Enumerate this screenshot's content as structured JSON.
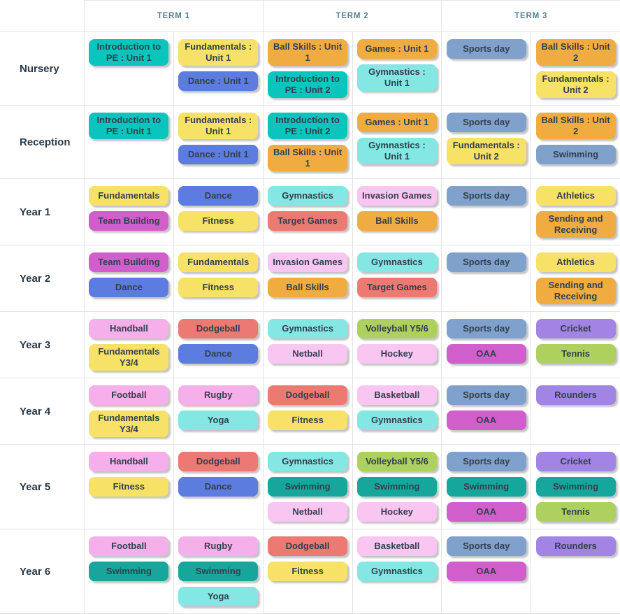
{
  "palette": {
    "teal": "#0ac5be",
    "yellow": "#f8e167",
    "blue": "#5c7ce0",
    "orange": "#f0ac40",
    "cyan": "#85e7e3",
    "bluegray": "#80a1cb",
    "magenta": "#d05ecb",
    "pink": "#f5afea",
    "lightpink": "#f8c6f1",
    "red": "#ec7a72",
    "lime": "#aed05e",
    "purple": "#a184e3",
    "seagreen": "#17a69c"
  },
  "terms": [
    {
      "label": "TERM 1"
    },
    {
      "label": "TERM 2"
    },
    {
      "label": "TERM 3"
    }
  ],
  "rows": [
    {
      "label": "Nursery",
      "cells": [
        [
          {
            "label": "Introduction to PE : Unit 1",
            "color": "teal"
          }
        ],
        [
          {
            "label": "Fundamentals : Unit 1",
            "color": "yellow"
          },
          {
            "label": "Dance : Unit 1",
            "color": "blue"
          }
        ],
        [
          {
            "label": "Ball Skills : Unit 1",
            "color": "orange"
          },
          {
            "label": "Introduction to PE : Unit 2",
            "color": "teal"
          }
        ],
        [
          {
            "label": "Games : Unit 1",
            "color": "orange"
          },
          {
            "label": "Gymnastics : Unit 1",
            "color": "cyan"
          }
        ],
        [
          {
            "label": "Sports day",
            "color": "bluegray"
          }
        ],
        [
          {
            "label": "Ball Skills : Unit 2",
            "color": "orange"
          },
          {
            "label": "Fundamentals : Unit 2",
            "color": "yellow"
          }
        ]
      ]
    },
    {
      "label": "Reception",
      "cells": [
        [
          {
            "label": "Introduction to PE : Unit 1",
            "color": "teal"
          }
        ],
        [
          {
            "label": "Fundamentals : Unit 1",
            "color": "yellow"
          },
          {
            "label": "Dance : Unit 1",
            "color": "blue"
          }
        ],
        [
          {
            "label": "Introduction to PE : Unit 2",
            "color": "teal"
          },
          {
            "label": "Ball Skills : Unit 1",
            "color": "orange"
          }
        ],
        [
          {
            "label": "Games : Unit 1",
            "color": "orange"
          },
          {
            "label": "Gymnastics : Unit 1",
            "color": "cyan"
          }
        ],
        [
          {
            "label": "Sports day",
            "color": "bluegray"
          },
          {
            "label": "Fundamentals : Unit 2",
            "color": "yellow"
          }
        ],
        [
          {
            "label": "Ball Skills : Unit 2",
            "color": "orange"
          },
          {
            "label": "Swimming",
            "color": "bluegray"
          }
        ]
      ]
    },
    {
      "label": "Year 1",
      "cells": [
        [
          {
            "label": "Fundamentals",
            "color": "yellow"
          },
          {
            "label": "Team Building",
            "color": "magenta"
          }
        ],
        [
          {
            "label": "Dance",
            "color": "blue"
          },
          {
            "label": "Fitness",
            "color": "yellow"
          }
        ],
        [
          {
            "label": "Gymnastics",
            "color": "cyan"
          },
          {
            "label": "Target Games",
            "color": "red"
          }
        ],
        [
          {
            "label": "Invasion Games",
            "color": "lightpink"
          },
          {
            "label": "Ball Skills",
            "color": "orange"
          }
        ],
        [
          {
            "label": "Sports day",
            "color": "bluegray"
          }
        ],
        [
          {
            "label": "Athletics",
            "color": "yellow"
          },
          {
            "label": "Sending and Receiving",
            "color": "orange"
          }
        ]
      ]
    },
    {
      "label": "Year 2",
      "cells": [
        [
          {
            "label": "Team Building",
            "color": "magenta"
          },
          {
            "label": "Dance",
            "color": "blue"
          }
        ],
        [
          {
            "label": "Fundamentals",
            "color": "yellow"
          },
          {
            "label": "Fitness",
            "color": "yellow"
          }
        ],
        [
          {
            "label": "Invasion Games",
            "color": "lightpink"
          },
          {
            "label": "Ball Skills",
            "color": "orange"
          }
        ],
        [
          {
            "label": "Gymnastics",
            "color": "cyan"
          },
          {
            "label": "Target Games",
            "color": "red"
          }
        ],
        [
          {
            "label": "Sports day",
            "color": "bluegray"
          }
        ],
        [
          {
            "label": "Athletics",
            "color": "yellow"
          },
          {
            "label": "Sending and Receiving",
            "color": "orange"
          }
        ]
      ]
    },
    {
      "label": "Year 3",
      "cells": [
        [
          {
            "label": "Handball",
            "color": "pink"
          },
          {
            "label": "Fundamentals Y3/4",
            "color": "yellow"
          }
        ],
        [
          {
            "label": "Dodgeball",
            "color": "red"
          },
          {
            "label": "Dance",
            "color": "blue"
          }
        ],
        [
          {
            "label": "Gymnastics",
            "color": "cyan"
          },
          {
            "label": "Netball",
            "color": "lightpink"
          }
        ],
        [
          {
            "label": "Volleyball Y5/6",
            "color": "lime"
          },
          {
            "label": "Hockey",
            "color": "lightpink"
          }
        ],
        [
          {
            "label": "Sports day",
            "color": "bluegray"
          },
          {
            "label": "OAA",
            "color": "magenta"
          }
        ],
        [
          {
            "label": "Cricket",
            "color": "purple"
          },
          {
            "label": "Tennis",
            "color": "lime"
          }
        ]
      ]
    },
    {
      "label": "Year 4",
      "cells": [
        [
          {
            "label": "Football",
            "color": "pink"
          },
          {
            "label": "Fundamentals Y3/4",
            "color": "yellow"
          }
        ],
        [
          {
            "label": "Rugby",
            "color": "pink"
          },
          {
            "label": "Yoga",
            "color": "cyan"
          }
        ],
        [
          {
            "label": "Dodgeball",
            "color": "red"
          },
          {
            "label": "Fitness",
            "color": "yellow"
          }
        ],
        [
          {
            "label": "Basketball",
            "color": "lightpink"
          },
          {
            "label": "Gymnastics",
            "color": "cyan"
          }
        ],
        [
          {
            "label": "Sports day",
            "color": "bluegray"
          },
          {
            "label": "OAA",
            "color": "magenta"
          }
        ],
        [
          {
            "label": "Rounders",
            "color": "purple"
          }
        ]
      ]
    },
    {
      "label": "Year 5",
      "cells": [
        [
          {
            "label": "Handball",
            "color": "pink"
          },
          {
            "label": "Fitness",
            "color": "yellow"
          }
        ],
        [
          {
            "label": "Dodgeball",
            "color": "red"
          },
          {
            "label": "Dance",
            "color": "blue"
          }
        ],
        [
          {
            "label": "Gymnastics",
            "color": "cyan"
          },
          {
            "label": "Swimming",
            "color": "seagreen"
          },
          {
            "label": "Netball",
            "color": "lightpink"
          }
        ],
        [
          {
            "label": "Volleyball Y5/6",
            "color": "lime"
          },
          {
            "label": "Swimming",
            "color": "seagreen"
          },
          {
            "label": "Hockey",
            "color": "lightpink"
          }
        ],
        [
          {
            "label": "Sports day",
            "color": "bluegray"
          },
          {
            "label": "Swimming",
            "color": "seagreen"
          },
          {
            "label": "OAA",
            "color": "magenta"
          }
        ],
        [
          {
            "label": "Cricket",
            "color": "purple"
          },
          {
            "label": "Swimming",
            "color": "seagreen"
          },
          {
            "label": "Tennis",
            "color": "lime"
          }
        ]
      ]
    },
    {
      "label": "Year 6",
      "cells": [
        [
          {
            "label": "Football",
            "color": "pink"
          },
          {
            "label": "Swimming",
            "color": "seagreen"
          }
        ],
        [
          {
            "label": "Rugby",
            "color": "pink"
          },
          {
            "label": "Swimming",
            "color": "seagreen"
          },
          {
            "label": "Yoga",
            "color": "cyan"
          }
        ],
        [
          {
            "label": "Dodgeball",
            "color": "red"
          },
          {
            "label": "Fitness",
            "color": "yellow"
          }
        ],
        [
          {
            "label": "Basketball",
            "color": "lightpink"
          },
          {
            "label": "Gymnastics",
            "color": "cyan"
          }
        ],
        [
          {
            "label": "Sports day",
            "color": "bluegray"
          },
          {
            "label": "OAA",
            "color": "magenta"
          }
        ],
        [
          {
            "label": "Rounders",
            "color": "purple"
          }
        ]
      ]
    }
  ]
}
